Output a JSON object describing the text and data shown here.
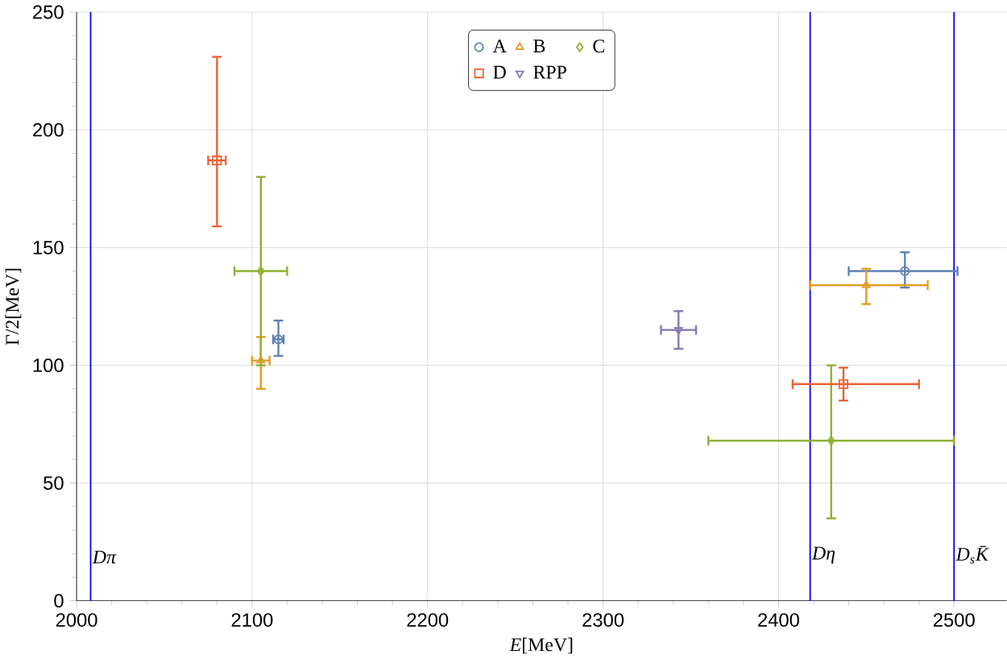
{
  "chart_data": {
    "type": "scatter",
    "xlabel": "*E*[MeV]",
    "ylabel": "Γ/2[MeV]",
    "xlim": [
      2000,
      2530
    ],
    "ylim": [
      0,
      250
    ],
    "xticks": [
      2000,
      2100,
      2200,
      2300,
      2400,
      2500
    ],
    "yticks": [
      0,
      50,
      100,
      150,
      200,
      250
    ],
    "grid": true,
    "legend": "top",
    "series": [
      {
        "name": "A",
        "color": "#5e81b5",
        "marker": "circle",
        "x": [
          2115,
          2472
        ],
        "values": [
          111,
          140
        ],
        "errors": [
          [
            104,
            119
          ],
          [
            133,
            148
          ]
        ],
        "xerrors": [
          [
            2112,
            2118
          ],
          [
            2440,
            2502
          ]
        ]
      },
      {
        "name": "B",
        "color": "#e19c24",
        "marker": "triangle",
        "x": [
          2105,
          2450
        ],
        "values": [
          102,
          134
        ],
        "errors": [
          [
            90,
            112
          ],
          [
            126,
            141
          ]
        ],
        "xerrors": [
          [
            2100,
            2110
          ],
          [
            2418,
            2485
          ]
        ]
      },
      {
        "name": "C",
        "color": "#8fb032",
        "marker": "diamond",
        "x": [
          2105,
          2430
        ],
        "values": [
          140,
          68
        ],
        "errors": [
          [
            100,
            180
          ],
          [
            35,
            100
          ]
        ],
        "xerrors": [
          [
            2090,
            2120
          ],
          [
            2360,
            2500
          ]
        ]
      },
      {
        "name": "D",
        "color": "#eb6235",
        "marker": "square",
        "x": [
          2080,
          2437
        ],
        "values": [
          187,
          92
        ],
        "errors": [
          [
            159,
            231
          ],
          [
            85,
            99
          ]
        ],
        "xerrors": [
          [
            2075,
            2085
          ],
          [
            2408,
            2480
          ]
        ]
      },
      {
        "name": "RPP",
        "color": "#8778b3",
        "marker": "triangle-down",
        "x": [
          2343
        ],
        "values": [
          115
        ],
        "errors": [
          [
            107,
            123
          ]
        ],
        "xerrors": [
          [
            2333,
            2353
          ]
        ]
      }
    ],
    "ref_lines": [
      {
        "axis": "x",
        "value": 2008,
        "label": "Dπ",
        "color": "#0000ff"
      },
      {
        "axis": "x",
        "value": 2418,
        "label": "Dη",
        "color": "#0000ff"
      },
      {
        "axis": "x",
        "value": 2500,
        "label": "D$_{s}$K̄",
        "color": "#0000ff"
      }
    ]
  }
}
